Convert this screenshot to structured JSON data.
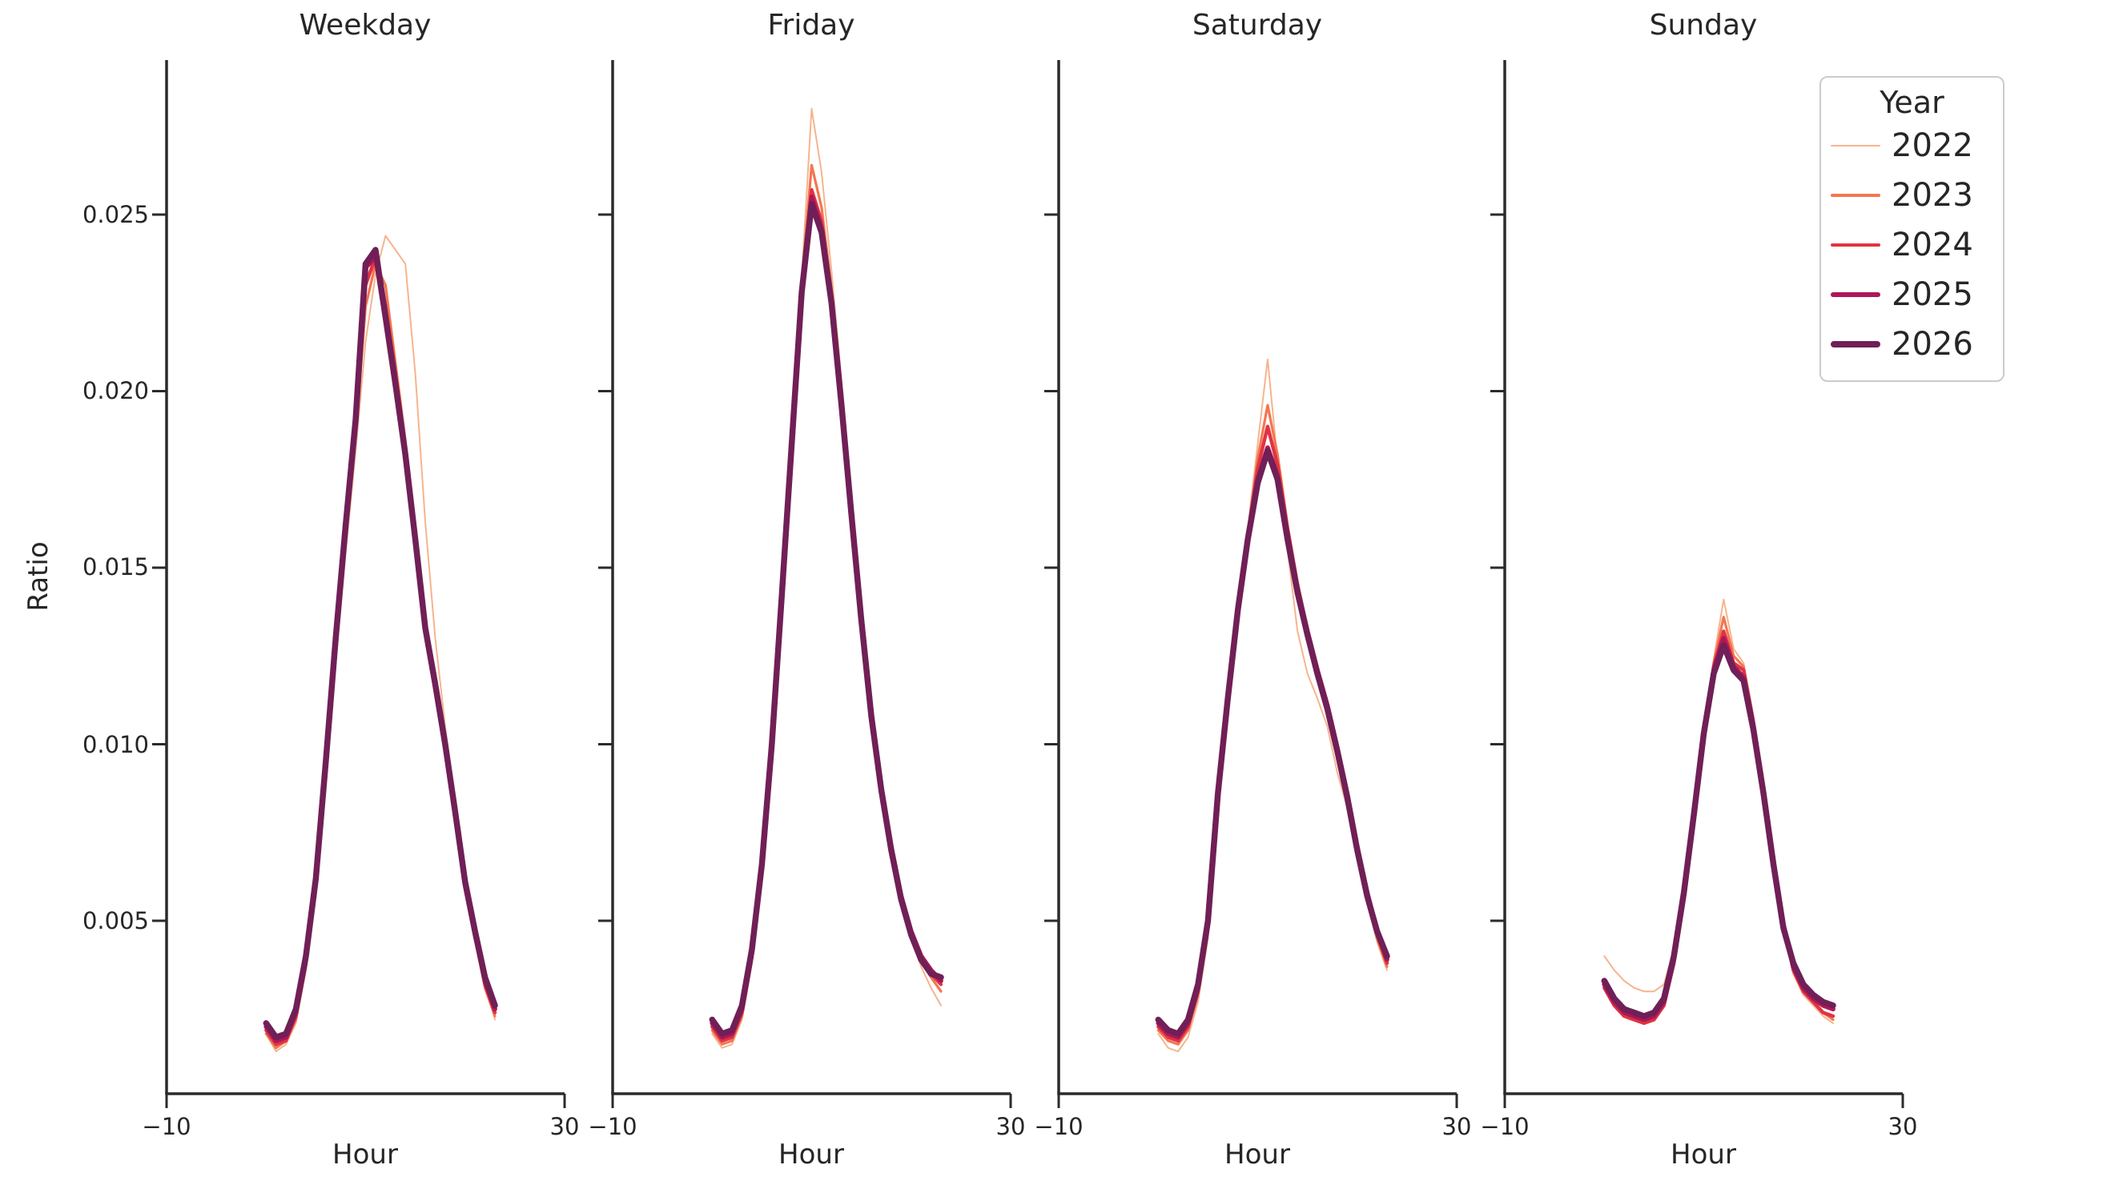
{
  "figure": {
    "background": "#ffffff",
    "text_color": "#262626",
    "spine_color": "#2b2b2b"
  },
  "axes": {
    "ylabel": "Ratio",
    "xlabel": "Hour",
    "ytick_labels": [
      "0.025",
      "0.020",
      "0.015",
      "0.010",
      "0.005"
    ],
    "ytick_values": [
      0.025,
      0.02,
      0.015,
      0.01,
      0.005
    ],
    "xtick_labels": [
      "−10",
      "30"
    ],
    "xtick_values": [
      -10,
      30
    ],
    "xlim": [
      -10,
      30
    ],
    "ylim": [
      0.0001,
      0.0294
    ],
    "grid": false
  },
  "legend": {
    "title": "Year",
    "position": "upper right, outside axes",
    "entries": [
      {
        "label": "2022",
        "color": "#f6b48e",
        "line_width": 2.0
      },
      {
        "label": "2023",
        "color": "#f37651",
        "line_width": 3.2
      },
      {
        "label": "2024",
        "color": "#e13342",
        "line_width": 4.4
      },
      {
        "label": "2025",
        "color": "#ad1759",
        "line_width": 5.8
      },
      {
        "label": "2026",
        "color": "#701f57",
        "line_width": 7.5
      }
    ]
  },
  "chart_data": [
    {
      "type": "line",
      "title": "Weekday",
      "xlabel": "Hour",
      "ylabel": "Ratio",
      "xlim": [
        -10,
        30
      ],
      "ylim": [
        0.0001,
        0.0294
      ],
      "x": [
        0,
        1,
        2,
        3,
        4,
        5,
        6,
        7,
        8,
        9,
        10,
        11,
        12,
        13,
        14,
        15,
        16,
        17,
        18,
        19,
        20,
        21,
        22,
        23
      ],
      "series": [
        {
          "name": "2022",
          "color": "#f6b48e",
          "line_width": 2.0,
          "values": [
            0.0018,
            0.0013,
            0.0015,
            0.0021,
            0.0036,
            0.0057,
            0.0089,
            0.0123,
            0.0154,
            0.0183,
            0.0214,
            0.0233,
            0.0244,
            0.024,
            0.0236,
            0.0205,
            0.0163,
            0.013,
            0.0105,
            0.0084,
            0.0063,
            0.0048,
            0.0033,
            0.0022
          ]
        },
        {
          "name": "2023",
          "color": "#f37651",
          "line_width": 3.2,
          "values": [
            0.0018,
            0.0014,
            0.0016,
            0.0022,
            0.0037,
            0.0059,
            0.0092,
            0.0127,
            0.0159,
            0.0188,
            0.0224,
            0.0236,
            0.023,
            0.0208,
            0.0186,
            0.016,
            0.0134,
            0.0117,
            0.0099,
            0.008,
            0.006,
            0.0045,
            0.0031,
            0.0023
          ]
        },
        {
          "name": "2024",
          "color": "#e13342",
          "line_width": 4.4,
          "values": [
            0.0019,
            0.0015,
            0.0016,
            0.0023,
            0.0038,
            0.006,
            0.0093,
            0.0128,
            0.016,
            0.019,
            0.023,
            0.0238,
            0.0224,
            0.0205,
            0.0184,
            0.0159,
            0.0134,
            0.0117,
            0.01,
            0.0081,
            0.0061,
            0.0046,
            0.0032,
            0.0024
          ]
        },
        {
          "name": "2025",
          "color": "#ad1759",
          "line_width": 5.8,
          "values": [
            0.002,
            0.0016,
            0.0017,
            0.0024,
            0.0039,
            0.0061,
            0.0094,
            0.0129,
            0.0161,
            0.0191,
            0.0235,
            0.0238,
            0.022,
            0.0201,
            0.0181,
            0.0157,
            0.0132,
            0.0116,
            0.0099,
            0.008,
            0.006,
            0.0046,
            0.0033,
            0.0025
          ]
        },
        {
          "name": "2026",
          "color": "#701f57",
          "line_width": 7.5,
          "values": [
            0.0021,
            0.0017,
            0.0018,
            0.0025,
            0.004,
            0.0062,
            0.0095,
            0.013,
            0.0162,
            0.0192,
            0.0236,
            0.024,
            0.0221,
            0.0202,
            0.0182,
            0.0158,
            0.0133,
            0.0117,
            0.01,
            0.0081,
            0.0061,
            0.0047,
            0.0034,
            0.0026
          ]
        }
      ]
    },
    {
      "type": "line",
      "title": "Friday",
      "xlabel": "Hour",
      "ylabel": "Ratio",
      "xlim": [
        -10,
        30
      ],
      "ylim": [
        0.0001,
        0.0294
      ],
      "x": [
        0,
        1,
        2,
        3,
        4,
        5,
        6,
        7,
        8,
        9,
        10,
        11,
        12,
        13,
        14,
        15,
        16,
        17,
        18,
        19,
        20,
        21,
        22,
        23
      ],
      "series": [
        {
          "name": "2022",
          "color": "#f6b48e",
          "line_width": 2.0,
          "values": [
            0.0018,
            0.0014,
            0.0015,
            0.0022,
            0.0038,
            0.0062,
            0.0096,
            0.0138,
            0.0183,
            0.0232,
            0.028,
            0.0262,
            0.0234,
            0.0203,
            0.0171,
            0.0139,
            0.0111,
            0.0089,
            0.007,
            0.0055,
            0.0045,
            0.0037,
            0.0031,
            0.0026
          ]
        },
        {
          "name": "2023",
          "color": "#f37651",
          "line_width": 3.2,
          "values": [
            0.0019,
            0.0015,
            0.0016,
            0.0023,
            0.0039,
            0.0063,
            0.0097,
            0.0139,
            0.0184,
            0.0231,
            0.0264,
            0.0252,
            0.0229,
            0.0199,
            0.0168,
            0.0137,
            0.011,
            0.0089,
            0.0071,
            0.0056,
            0.0046,
            0.0039,
            0.0034,
            0.003
          ]
        },
        {
          "name": "2024",
          "color": "#e13342",
          "line_width": 4.4,
          "values": [
            0.002,
            0.0016,
            0.0017,
            0.0024,
            0.004,
            0.0064,
            0.0098,
            0.014,
            0.0184,
            0.023,
            0.0257,
            0.0248,
            0.0227,
            0.0198,
            0.0167,
            0.0137,
            0.011,
            0.0089,
            0.0071,
            0.0057,
            0.0047,
            0.004,
            0.0035,
            0.0032
          ]
        },
        {
          "name": "2025",
          "color": "#ad1759",
          "line_width": 5.8,
          "values": [
            0.0021,
            0.0017,
            0.0018,
            0.0025,
            0.0041,
            0.0065,
            0.0099,
            0.0141,
            0.0185,
            0.0229,
            0.0255,
            0.0246,
            0.0226,
            0.0197,
            0.0166,
            0.0136,
            0.0109,
            0.0088,
            0.0071,
            0.0057,
            0.0047,
            0.004,
            0.0036,
            0.0033
          ]
        },
        {
          "name": "2026",
          "color": "#701f57",
          "line_width": 7.5,
          "values": [
            0.0022,
            0.0018,
            0.0019,
            0.0026,
            0.0042,
            0.0066,
            0.01,
            0.0142,
            0.0185,
            0.0228,
            0.0253,
            0.0245,
            0.0225,
            0.0196,
            0.0165,
            0.0135,
            0.0108,
            0.0087,
            0.007,
            0.0056,
            0.0046,
            0.0039,
            0.0035,
            0.0034
          ]
        }
      ]
    },
    {
      "type": "line",
      "title": "Saturday",
      "xlabel": "Hour",
      "ylabel": "Ratio",
      "xlim": [
        -10,
        30
      ],
      "ylim": [
        0.0001,
        0.0294
      ],
      "x": [
        0,
        1,
        2,
        3,
        4,
        5,
        6,
        7,
        8,
        9,
        10,
        11,
        12,
        13,
        14,
        15,
        16,
        17,
        18,
        19,
        20,
        21,
        22,
        23
      ],
      "series": [
        {
          "name": "2022",
          "color": "#f6b48e",
          "line_width": 2.0,
          "values": [
            0.0018,
            0.0014,
            0.0013,
            0.0017,
            0.0027,
            0.0045,
            0.0081,
            0.0108,
            0.0135,
            0.0161,
            0.0185,
            0.0209,
            0.018,
            0.0155,
            0.0132,
            0.012,
            0.0113,
            0.0105,
            0.0092,
            0.0082,
            0.0068,
            0.0055,
            0.0044,
            0.0036
          ]
        },
        {
          "name": "2023",
          "color": "#f37651",
          "line_width": 3.2,
          "values": [
            0.0019,
            0.0016,
            0.0015,
            0.0019,
            0.0029,
            0.0047,
            0.0083,
            0.011,
            0.0136,
            0.016,
            0.0181,
            0.0196,
            0.0182,
            0.0162,
            0.0146,
            0.0133,
            0.0121,
            0.011,
            0.0098,
            0.0085,
            0.007,
            0.0057,
            0.0045,
            0.0037
          ]
        },
        {
          "name": "2024",
          "color": "#e13342",
          "line_width": 4.4,
          "values": [
            0.002,
            0.0017,
            0.0016,
            0.002,
            0.003,
            0.0048,
            0.0084,
            0.0111,
            0.0137,
            0.0159,
            0.0178,
            0.019,
            0.0179,
            0.0161,
            0.0145,
            0.0132,
            0.0121,
            0.0111,
            0.0099,
            0.0086,
            0.0071,
            0.0058,
            0.0046,
            0.0038
          ]
        },
        {
          "name": "2025",
          "color": "#ad1759",
          "line_width": 5.8,
          "values": [
            0.0021,
            0.0018,
            0.0017,
            0.0021,
            0.0031,
            0.0049,
            0.0085,
            0.0112,
            0.0137,
            0.0158,
            0.0175,
            0.0184,
            0.0176,
            0.0159,
            0.0144,
            0.0132,
            0.0121,
            0.0111,
            0.0099,
            0.0086,
            0.0071,
            0.0058,
            0.0047,
            0.0039
          ]
        },
        {
          "name": "2026",
          "color": "#701f57",
          "line_width": 7.5,
          "values": [
            0.0022,
            0.0019,
            0.0018,
            0.0022,
            0.0032,
            0.005,
            0.0086,
            0.0113,
            0.0138,
            0.0158,
            0.0174,
            0.0183,
            0.0175,
            0.0158,
            0.0143,
            0.0131,
            0.012,
            0.011,
            0.0098,
            0.0085,
            0.007,
            0.0057,
            0.0047,
            0.004
          ]
        }
      ]
    },
    {
      "type": "line",
      "title": "Sunday",
      "xlabel": "Hour",
      "ylabel": "Ratio",
      "xlim": [
        -10,
        30
      ],
      "ylim": [
        0.0001,
        0.0294
      ],
      "x": [
        0,
        1,
        2,
        3,
        4,
        5,
        6,
        7,
        8,
        9,
        10,
        11,
        12,
        13,
        14,
        15,
        16,
        17,
        18,
        19,
        20,
        21,
        22,
        23
      ],
      "series": [
        {
          "name": "2022",
          "color": "#f6b48e",
          "line_width": 2.0,
          "values": [
            0.004,
            0.0036,
            0.0033,
            0.0031,
            0.003,
            0.003,
            0.0032,
            0.0042,
            0.006,
            0.0081,
            0.0104,
            0.0124,
            0.0141,
            0.0127,
            0.0123,
            0.0108,
            0.0089,
            0.0068,
            0.0049,
            0.0035,
            0.0029,
            0.0026,
            0.0023,
            0.0021
          ]
        },
        {
          "name": "2023",
          "color": "#f37651",
          "line_width": 3.2,
          "values": [
            0.0033,
            0.0028,
            0.0025,
            0.0024,
            0.0023,
            0.0024,
            0.0027,
            0.0039,
            0.0057,
            0.0079,
            0.0103,
            0.0123,
            0.0136,
            0.0125,
            0.0122,
            0.0107,
            0.0088,
            0.0068,
            0.0049,
            0.0036,
            0.003,
            0.0027,
            0.0024,
            0.0022
          ]
        },
        {
          "name": "2024",
          "color": "#e13342",
          "line_width": 4.4,
          "values": [
            0.0031,
            0.0026,
            0.0023,
            0.0022,
            0.0021,
            0.0022,
            0.0026,
            0.0038,
            0.0056,
            0.0078,
            0.0102,
            0.0122,
            0.0132,
            0.0123,
            0.0121,
            0.0106,
            0.0088,
            0.0067,
            0.0049,
            0.0036,
            0.003,
            0.0027,
            0.0024,
            0.0023
          ]
        },
        {
          "name": "2025",
          "color": "#ad1759",
          "line_width": 5.8,
          "values": [
            0.0032,
            0.0027,
            0.0024,
            0.0023,
            0.0022,
            0.0023,
            0.0027,
            0.0039,
            0.0057,
            0.0079,
            0.0102,
            0.0121,
            0.013,
            0.0122,
            0.0119,
            0.0105,
            0.0087,
            0.0067,
            0.0049,
            0.0037,
            0.0031,
            0.0028,
            0.0026,
            0.0025
          ]
        },
        {
          "name": "2026",
          "color": "#701f57",
          "line_width": 7.5,
          "values": [
            0.0033,
            0.0028,
            0.0025,
            0.0024,
            0.0023,
            0.0024,
            0.0028,
            0.004,
            0.0058,
            0.008,
            0.0103,
            0.012,
            0.0128,
            0.0121,
            0.0118,
            0.0104,
            0.0086,
            0.0066,
            0.0048,
            0.0038,
            0.0032,
            0.0029,
            0.0027,
            0.0026
          ]
        }
      ]
    }
  ]
}
